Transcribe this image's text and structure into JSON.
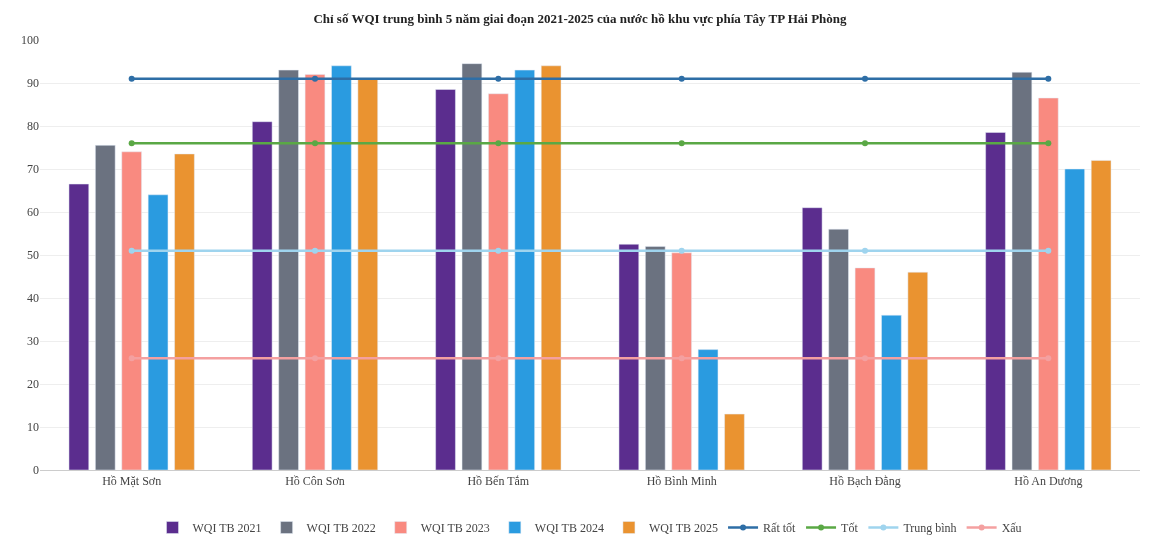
{
  "chart_data": {
    "type": "bar",
    "title": "Chỉ số WQI trung bình 5 năm giai đoạn 2021-2025 của nước hồ khu vực phía Tây TP Hải Phòng",
    "categories": [
      "Hồ Mặt Sơn",
      "Hồ Côn Sơn",
      "Hồ Bến Tắm",
      "Hồ Bình Minh",
      "Hồ Bạch Đằng",
      "Hồ An Dương"
    ],
    "series": [
      {
        "name": "WQI TB 2021",
        "color": "#5b2d8e",
        "values": [
          66.5,
          81,
          88.5,
          52.5,
          61,
          78.5
        ]
      },
      {
        "name": "WQI TB 2022",
        "color": "#6b7280",
        "values": [
          75.5,
          93,
          94.5,
          52,
          56,
          92.5
        ]
      },
      {
        "name": "WQI TB 2023",
        "color": "#f98a80",
        "values": [
          74,
          92,
          87.5,
          50.5,
          47,
          86.5
        ]
      },
      {
        "name": "WQI TB 2024",
        "color": "#2a9be0",
        "values": [
          64,
          94,
          93,
          28,
          36,
          70
        ]
      },
      {
        "name": "WQI TB 2025",
        "color": "#ea9330",
        "values": [
          73.5,
          91,
          94,
          13,
          46,
          72
        ]
      },
      {
        "name": "Rất tốt",
        "type": "line",
        "color": "#2e6ea6",
        "values": [
          91,
          91,
          91,
          91,
          91,
          91
        ]
      },
      {
        "name": "Tốt",
        "type": "line",
        "color": "#5aa845",
        "values": [
          76,
          76,
          76,
          76,
          76,
          76
        ]
      },
      {
        "name": "Trung bình",
        "type": "line",
        "color": "#9fd4ee",
        "values": [
          51,
          51,
          51,
          51,
          51,
          51
        ]
      },
      {
        "name": "Xấu",
        "type": "line",
        "color": "#f4a0a0",
        "values": [
          26,
          26,
          26,
          26,
          26,
          26
        ]
      }
    ],
    "ylim": [
      0,
      100
    ],
    "yticks": [
      0,
      10,
      20,
      30,
      40,
      50,
      60,
      70,
      80,
      90,
      100
    ],
    "grid": "y",
    "legend": "bottom",
    "marker": "circle"
  }
}
